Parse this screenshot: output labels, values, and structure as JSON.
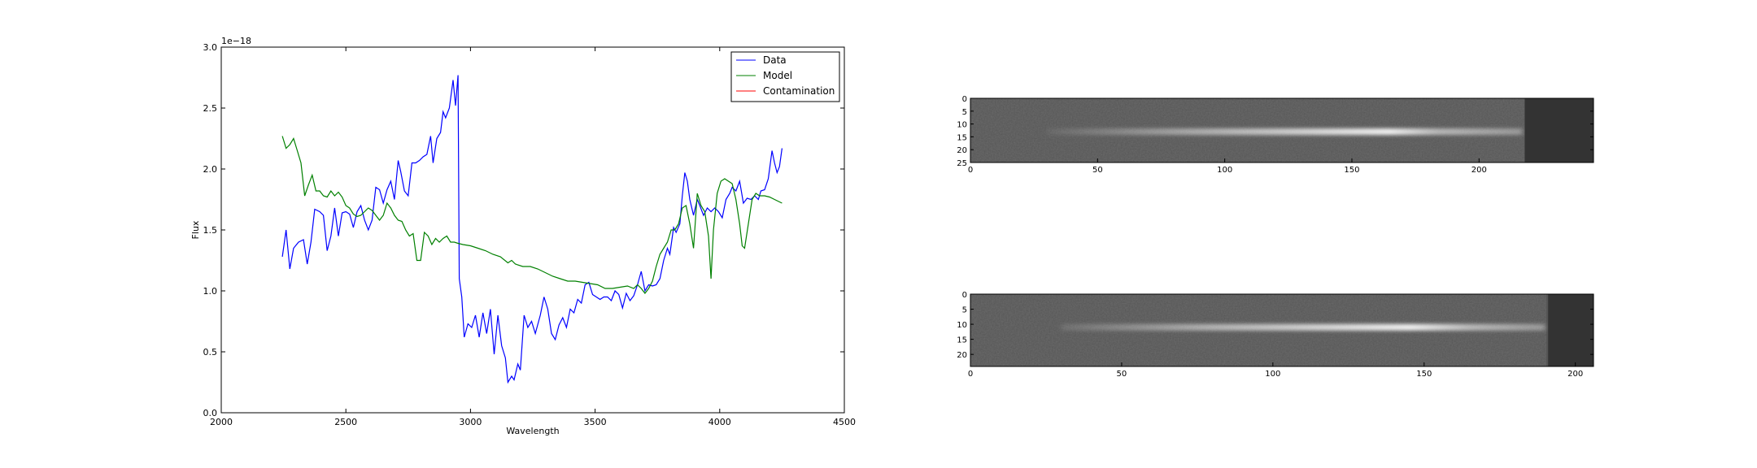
{
  "chart_data": [
    {
      "type": "line",
      "title": "",
      "xlabel": "Wavelength",
      "ylabel": "Flux",
      "offset_text": "1e−18",
      "xlim": [
        2000,
        4500
      ],
      "ylim": [
        0.0,
        3.0
      ],
      "xticks": [
        2000,
        2500,
        3000,
        3500,
        4000,
        4500
      ],
      "yticks": [
        0.0,
        0.5,
        1.0,
        1.5,
        2.0,
        2.5,
        3.0
      ],
      "xtick_labels": [
        "2000",
        "2500",
        "3000",
        "3500",
        "4000",
        "4500"
      ],
      "ytick_labels": [
        "0.0",
        "0.5",
        "1.0",
        "1.5",
        "2.0",
        "2.5",
        "3.0"
      ],
      "grid": false,
      "legend_position": "top-right",
      "series": [
        {
          "name": "Data",
          "color": "#0000ff",
          "points": [
            [
              2245,
              1.28
            ],
            [
              2260,
              1.5
            ],
            [
              2275,
              1.18
            ],
            [
              2290,
              1.35
            ],
            [
              2310,
              1.4
            ],
            [
              2330,
              1.42
            ],
            [
              2345,
              1.22
            ],
            [
              2360,
              1.4
            ],
            [
              2375,
              1.67
            ],
            [
              2395,
              1.65
            ],
            [
              2410,
              1.62
            ],
            [
              2425,
              1.33
            ],
            [
              2440,
              1.45
            ],
            [
              2455,
              1.68
            ],
            [
              2470,
              1.45
            ],
            [
              2485,
              1.64
            ],
            [
              2500,
              1.65
            ],
            [
              2515,
              1.63
            ],
            [
              2530,
              1.52
            ],
            [
              2545,
              1.65
            ],
            [
              2560,
              1.7
            ],
            [
              2575,
              1.58
            ],
            [
              2590,
              1.5
            ],
            [
              2605,
              1.58
            ],
            [
              2620,
              1.85
            ],
            [
              2635,
              1.83
            ],
            [
              2650,
              1.72
            ],
            [
              2665,
              1.83
            ],
            [
              2680,
              1.9
            ],
            [
              2695,
              1.75
            ],
            [
              2710,
              2.07
            ],
            [
              2720,
              1.98
            ],
            [
              2735,
              1.82
            ],
            [
              2750,
              1.78
            ],
            [
              2765,
              2.05
            ],
            [
              2780,
              2.05
            ],
            [
              2795,
              2.07
            ],
            [
              2810,
              2.1
            ],
            [
              2825,
              2.12
            ],
            [
              2840,
              2.27
            ],
            [
              2850,
              2.05
            ],
            [
              2865,
              2.25
            ],
            [
              2880,
              2.3
            ],
            [
              2890,
              2.47
            ],
            [
              2900,
              2.42
            ],
            [
              2915,
              2.5
            ],
            [
              2930,
              2.73
            ],
            [
              2940,
              2.52
            ],
            [
              2950,
              2.77
            ],
            [
              2955,
              1.1
            ],
            [
              2965,
              0.95
            ],
            [
              2975,
              0.62
            ],
            [
              2990,
              0.73
            ],
            [
              3005,
              0.7
            ],
            [
              3020,
              0.8
            ],
            [
              3035,
              0.62
            ],
            [
              3050,
              0.82
            ],
            [
              3065,
              0.65
            ],
            [
              3080,
              0.85
            ],
            [
              3095,
              0.48
            ],
            [
              3110,
              0.8
            ],
            [
              3125,
              0.55
            ],
            [
              3140,
              0.45
            ],
            [
              3150,
              0.25
            ],
            [
              3165,
              0.3
            ],
            [
              3175,
              0.27
            ],
            [
              3190,
              0.4
            ],
            [
              3200,
              0.35
            ],
            [
              3215,
              0.8
            ],
            [
              3230,
              0.7
            ],
            [
              3245,
              0.75
            ],
            [
              3260,
              0.65
            ],
            [
              3280,
              0.8
            ],
            [
              3295,
              0.95
            ],
            [
              3310,
              0.85
            ],
            [
              3325,
              0.65
            ],
            [
              3340,
              0.6
            ],
            [
              3355,
              0.72
            ],
            [
              3370,
              0.78
            ],
            [
              3385,
              0.7
            ],
            [
              3400,
              0.85
            ],
            [
              3415,
              0.82
            ],
            [
              3430,
              0.93
            ],
            [
              3445,
              0.9
            ],
            [
              3460,
              1.05
            ],
            [
              3475,
              1.07
            ],
            [
              3490,
              0.97
            ],
            [
              3505,
              0.95
            ],
            [
              3520,
              0.93
            ],
            [
              3535,
              0.95
            ],
            [
              3550,
              0.95
            ],
            [
              3565,
              0.92
            ],
            [
              3580,
              1.0
            ],
            [
              3595,
              0.97
            ],
            [
              3610,
              0.86
            ],
            [
              3625,
              0.98
            ],
            [
              3640,
              0.92
            ],
            [
              3655,
              0.96
            ],
            [
              3670,
              1.05
            ],
            [
              3685,
              1.16
            ],
            [
              3700,
              1.0
            ],
            [
              3715,
              1.05
            ],
            [
              3730,
              1.04
            ],
            [
              3745,
              1.05
            ],
            [
              3760,
              1.1
            ],
            [
              3775,
              1.25
            ],
            [
              3790,
              1.35
            ],
            [
              3800,
              1.3
            ],
            [
              3815,
              1.52
            ],
            [
              3825,
              1.48
            ],
            [
              3840,
              1.55
            ],
            [
              3850,
              1.78
            ],
            [
              3860,
              1.97
            ],
            [
              3870,
              1.9
            ],
            [
              3880,
              1.75
            ],
            [
              3895,
              1.62
            ],
            [
              3910,
              1.75
            ],
            [
              3920,
              1.7
            ],
            [
              3935,
              1.62
            ],
            [
              3950,
              1.68
            ],
            [
              3965,
              1.65
            ],
            [
              3980,
              1.68
            ],
            [
              3995,
              1.65
            ],
            [
              4010,
              1.6
            ],
            [
              4025,
              1.75
            ],
            [
              4040,
              1.8
            ],
            [
              4050,
              1.85
            ],
            [
              4065,
              1.82
            ],
            [
              4080,
              1.9
            ],
            [
              4095,
              1.72
            ],
            [
              4110,
              1.76
            ],
            [
              4125,
              1.75
            ],
            [
              4140,
              1.78
            ],
            [
              4155,
              1.75
            ],
            [
              4165,
              1.82
            ],
            [
              4180,
              1.83
            ],
            [
              4195,
              1.92
            ],
            [
              4210,
              2.15
            ],
            [
              4220,
              2.05
            ],
            [
              4230,
              1.97
            ],
            [
              4240,
              2.02
            ],
            [
              4250,
              2.17
            ]
          ]
        },
        {
          "name": "Model",
          "color": "#008000",
          "points": [
            [
              2245,
              2.27
            ],
            [
              2260,
              2.17
            ],
            [
              2275,
              2.2
            ],
            [
              2290,
              2.25
            ],
            [
              2305,
              2.15
            ],
            [
              2320,
              2.05
            ],
            [
              2335,
              1.78
            ],
            [
              2350,
              1.87
            ],
            [
              2365,
              1.95
            ],
            [
              2380,
              1.82
            ],
            [
              2395,
              1.82
            ],
            [
              2410,
              1.78
            ],
            [
              2425,
              1.77
            ],
            [
              2440,
              1.82
            ],
            [
              2455,
              1.78
            ],
            [
              2470,
              1.81
            ],
            [
              2485,
              1.77
            ],
            [
              2500,
              1.7
            ],
            [
              2515,
              1.68
            ],
            [
              2530,
              1.63
            ],
            [
              2545,
              1.61
            ],
            [
              2560,
              1.62
            ],
            [
              2575,
              1.65
            ],
            [
              2590,
              1.68
            ],
            [
              2605,
              1.66
            ],
            [
              2620,
              1.62
            ],
            [
              2635,
              1.58
            ],
            [
              2650,
              1.62
            ],
            [
              2665,
              1.72
            ],
            [
              2680,
              1.68
            ],
            [
              2695,
              1.62
            ],
            [
              2710,
              1.58
            ],
            [
              2725,
              1.57
            ],
            [
              2740,
              1.5
            ],
            [
              2755,
              1.45
            ],
            [
              2770,
              1.47
            ],
            [
              2785,
              1.25
            ],
            [
              2800,
              1.25
            ],
            [
              2815,
              1.48
            ],
            [
              2830,
              1.45
            ],
            [
              2845,
              1.38
            ],
            [
              2860,
              1.43
            ],
            [
              2875,
              1.4
            ],
            [
              2890,
              1.43
            ],
            [
              2905,
              1.45
            ],
            [
              2920,
              1.4
            ],
            [
              2935,
              1.4
            ],
            [
              2950,
              1.39
            ],
            [
              2970,
              1.38
            ],
            [
              3000,
              1.37
            ],
            [
              3030,
              1.35
            ],
            [
              3060,
              1.33
            ],
            [
              3090,
              1.3
            ],
            [
              3120,
              1.28
            ],
            [
              3150,
              1.23
            ],
            [
              3165,
              1.25
            ],
            [
              3180,
              1.22
            ],
            [
              3210,
              1.2
            ],
            [
              3240,
              1.2
            ],
            [
              3270,
              1.18
            ],
            [
              3300,
              1.15
            ],
            [
              3330,
              1.12
            ],
            [
              3360,
              1.1
            ],
            [
              3390,
              1.08
            ],
            [
              3420,
              1.08
            ],
            [
              3450,
              1.07
            ],
            [
              3480,
              1.06
            ],
            [
              3510,
              1.05
            ],
            [
              3540,
              1.02
            ],
            [
              3570,
              1.02
            ],
            [
              3600,
              1.03
            ],
            [
              3630,
              1.04
            ],
            [
              3655,
              1.02
            ],
            [
              3670,
              1.05
            ],
            [
              3685,
              1.02
            ],
            [
              3700,
              0.98
            ],
            [
              3715,
              1.02
            ],
            [
              3730,
              1.08
            ],
            [
              3745,
              1.2
            ],
            [
              3760,
              1.3
            ],
            [
              3775,
              1.35
            ],
            [
              3790,
              1.4
            ],
            [
              3805,
              1.5
            ],
            [
              3820,
              1.5
            ],
            [
              3835,
              1.55
            ],
            [
              3850,
              1.68
            ],
            [
              3865,
              1.7
            ],
            [
              3880,
              1.55
            ],
            [
              3895,
              1.35
            ],
            [
              3910,
              1.8
            ],
            [
              3925,
              1.7
            ],
            [
              3940,
              1.65
            ],
            [
              3955,
              1.45
            ],
            [
              3965,
              1.1
            ],
            [
              3975,
              1.5
            ],
            [
              3990,
              1.8
            ],
            [
              4005,
              1.9
            ],
            [
              4020,
              1.92
            ],
            [
              4035,
              1.9
            ],
            [
              4050,
              1.88
            ],
            [
              4065,
              1.75
            ],
            [
              4080,
              1.55
            ],
            [
              4090,
              1.37
            ],
            [
              4100,
              1.35
            ],
            [
              4115,
              1.55
            ],
            [
              4130,
              1.75
            ],
            [
              4145,
              1.8
            ],
            [
              4160,
              1.78
            ],
            [
              4180,
              1.78
            ],
            [
              4200,
              1.77
            ],
            [
              4220,
              1.75
            ],
            [
              4240,
              1.73
            ],
            [
              4250,
              1.72
            ]
          ]
        },
        {
          "name": "Contamination",
          "color": "#ff0000",
          "points": []
        }
      ]
    },
    {
      "type": "heatmap",
      "title": "",
      "xlim": [
        0,
        245
      ],
      "ylim": [
        0,
        25
      ],
      "xticks": [
        0,
        50,
        100,
        150,
        200
      ],
      "yticks": [
        0,
        5,
        10,
        15,
        20,
        25
      ],
      "xtick_labels": [
        "0",
        "50",
        "100",
        "150",
        "200"
      ],
      "ytick_labels": [
        "0",
        "5",
        "10",
        "15",
        "20",
        "25"
      ],
      "colormap": "gray",
      "trace": {
        "row": 13,
        "start": 30,
        "end": 217,
        "peak": 160
      },
      "padding_start": 218
    },
    {
      "type": "heatmap",
      "title": "",
      "xlim": [
        0,
        206
      ],
      "ylim": [
        0,
        24
      ],
      "xticks": [
        0,
        50,
        100,
        150,
        200
      ],
      "yticks": [
        0,
        5,
        10,
        15,
        20
      ],
      "xtick_labels": [
        "0",
        "50",
        "100",
        "150",
        "200"
      ],
      "ytick_labels": [
        "0",
        "5",
        "10",
        "15",
        "20"
      ],
      "colormap": "gray",
      "trace": {
        "row": 11,
        "start": 30,
        "end": 190,
        "peak": 140
      },
      "padding_start": 191
    }
  ]
}
